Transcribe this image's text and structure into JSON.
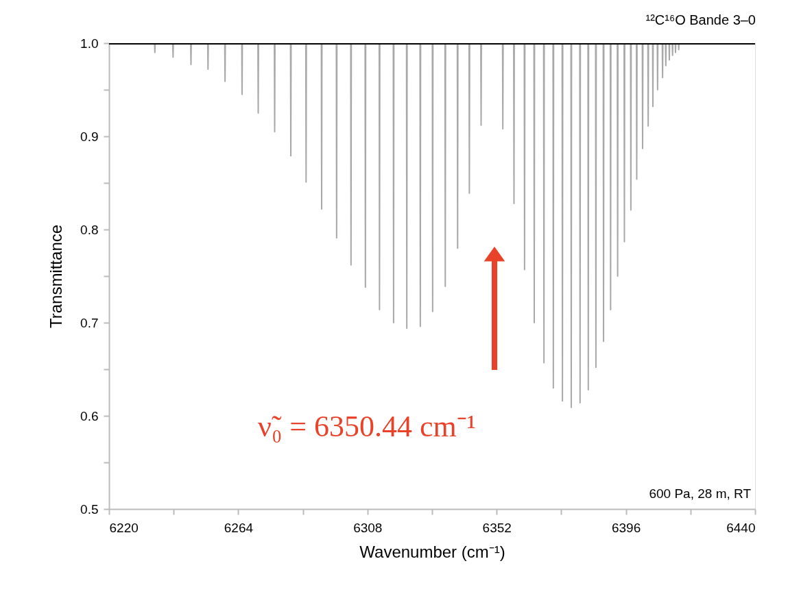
{
  "chart_data": {
    "type": "line",
    "title": "¹²C¹⁶O Bande 3–0",
    "xlabel": "Wavenumber (cm⁻¹)",
    "ylabel": "Transmittance",
    "xlim": [
      6220,
      6440
    ],
    "ylim": [
      0.5,
      1.0
    ],
    "xticks": [
      6220,
      {
        "value": 6242,
        "label": null
      },
      6264,
      {
        "value": 6286,
        "label": null
      },
      6308,
      {
        "value": 6330,
        "label": null
      },
      6352,
      {
        "value": 6374,
        "label": null
      },
      6396,
      {
        "value": 6418,
        "label": null
      },
      6440
    ],
    "yticks": [
      0.5,
      {
        "value": 0.55,
        "label": null
      },
      0.6,
      {
        "value": 0.65,
        "label": null
      },
      0.7,
      {
        "value": 0.75,
        "label": null
      },
      0.8,
      {
        "value": 0.85,
        "label": null
      },
      0.9,
      {
        "value": 0.95,
        "label": null
      },
      {
        "value": 1.0,
        "label": "1.0"
      }
    ],
    "grid": false,
    "marker": "none",
    "line_style": "solid",
    "series": [
      {
        "color": "#a8a8a8",
        "x": [
          6235.5,
          6235.6,
          6235.7,
          6241.7,
          6241.8,
          6241.9,
          6247.8,
          6247.9,
          6248.0,
          6253.6,
          6253.7,
          6253.8,
          6259.4,
          6259.5,
          6259.6,
          6265.2,
          6265.3,
          6265.4,
          6270.7,
          6270.8,
          6270.9,
          6276.3,
          6276.4,
          6276.5,
          6281.8,
          6281.9,
          6282.0,
          6287.0,
          6287.1,
          6287.2,
          6292.3,
          6292.4,
          6292.5,
          6297.4,
          6297.5,
          6297.6,
          6302.3,
          6302.4,
          6302.5,
          6307.2,
          6307.3,
          6307.4,
          6312.0,
          6312.1,
          6312.2,
          6316.8,
          6316.9,
          6317.0,
          6321.3,
          6321.4,
          6321.5,
          6325.9,
          6326.0,
          6326.1,
          6330.1,
          6330.2,
          6330.3,
          6334.4,
          6334.5,
          6334.6,
          6338.6,
          6338.7,
          6338.8,
          6342.6,
          6342.7,
          6342.8,
          6346.6,
          6346.7,
          6346.8,
          6354.0,
          6354.1,
          6354.2,
          6357.8,
          6357.9,
          6358.0,
          6361.4,
          6361.5,
          6361.6,
          6364.7,
          6364.8,
          6364.9,
          6368.0,
          6368.1,
          6368.2,
          6371.2,
          6371.3,
          6371.4,
          6374.3,
          6374.4,
          6374.5,
          6377.3,
          6377.4,
          6377.5,
          6380.3,
          6380.4,
          6380.5,
          6383.1,
          6383.2,
          6383.3,
          6385.7,
          6385.8,
          6385.9,
          6388.3,
          6388.4,
          6388.5,
          6390.7,
          6390.8,
          6390.9,
          6393.1,
          6393.2,
          6393.3,
          6395.4,
          6395.5,
          6395.6,
          6397.6,
          6397.7,
          6397.8,
          6399.6,
          6399.7,
          6399.8,
          6401.6,
          6401.7,
          6401.8,
          6403.5,
          6403.6,
          6403.7,
          6405.1,
          6405.2,
          6405.3,
          6406.7,
          6406.8,
          6406.9,
          6408.4,
          6408.5,
          6408.6,
          6409.5,
          6409.6,
          6409.7,
          6410.7,
          6410.8,
          6410.9,
          6411.8,
          6411.9,
          6412.0,
          6412.8,
          6412.9,
          6413.0,
          6413.9,
          6414.0,
          6414.1
        ],
        "values": [
          1.0,
          0.99,
          1.0,
          1.0,
          0.985,
          1.0,
          1.0,
          0.977,
          1.0,
          1.0,
          0.972,
          1.0,
          1.0,
          0.959,
          1.0,
          1.0,
          0.945,
          1.0,
          1.0,
          0.925,
          1.0,
          1.0,
          0.905,
          1.0,
          1.0,
          0.879,
          1.0,
          1.0,
          0.851,
          1.0,
          1.0,
          0.822,
          1.0,
          1.0,
          0.791,
          1.0,
          1.0,
          0.762,
          1.0,
          1.0,
          0.738,
          1.0,
          1.0,
          0.714,
          1.0,
          1.0,
          0.7,
          1.0,
          1.0,
          0.694,
          1.0,
          1.0,
          0.696,
          1.0,
          1.0,
          0.712,
          1.0,
          1.0,
          0.739,
          1.0,
          1.0,
          0.78,
          1.0,
          1.0,
          0.839,
          1.0,
          1.0,
          0.912,
          1.0,
          1.0,
          0.908,
          1.0,
          1.0,
          0.828,
          1.0,
          1.0,
          0.757,
          1.0,
          1.0,
          0.7,
          1.0,
          1.0,
          0.657,
          1.0,
          1.0,
          0.63,
          1.0,
          1.0,
          0.616,
          1.0,
          1.0,
          0.609,
          1.0,
          1.0,
          0.614,
          1.0,
          1.0,
          0.628,
          1.0,
          1.0,
          0.652,
          1.0,
          1.0,
          0.68,
          1.0,
          1.0,
          0.714,
          1.0,
          1.0,
          0.75,
          1.0,
          1.0,
          0.787,
          1.0,
          1.0,
          0.821,
          1.0,
          1.0,
          0.854,
          1.0,
          1.0,
          0.887,
          1.0,
          1.0,
          0.911,
          1.0,
          1.0,
          0.932,
          1.0,
          1.0,
          0.95,
          1.0,
          1.0,
          0.963,
          1.0,
          1.0,
          0.976,
          1.0,
          1.0,
          0.982,
          1.0,
          1.0,
          0.987,
          1.0,
          1.0,
          0.99,
          1.0,
          1.0,
          0.993,
          1.0
        ]
      },
      {
        "color": "#000000",
        "x": [
          6220,
          6440
        ],
        "values": [
          1.0,
          1.0
        ]
      }
    ],
    "annotations": [
      "ν̃₀ = 6350.44 cm⁻¹",
      "600 Pa, 28 m, RT"
    ]
  }
}
